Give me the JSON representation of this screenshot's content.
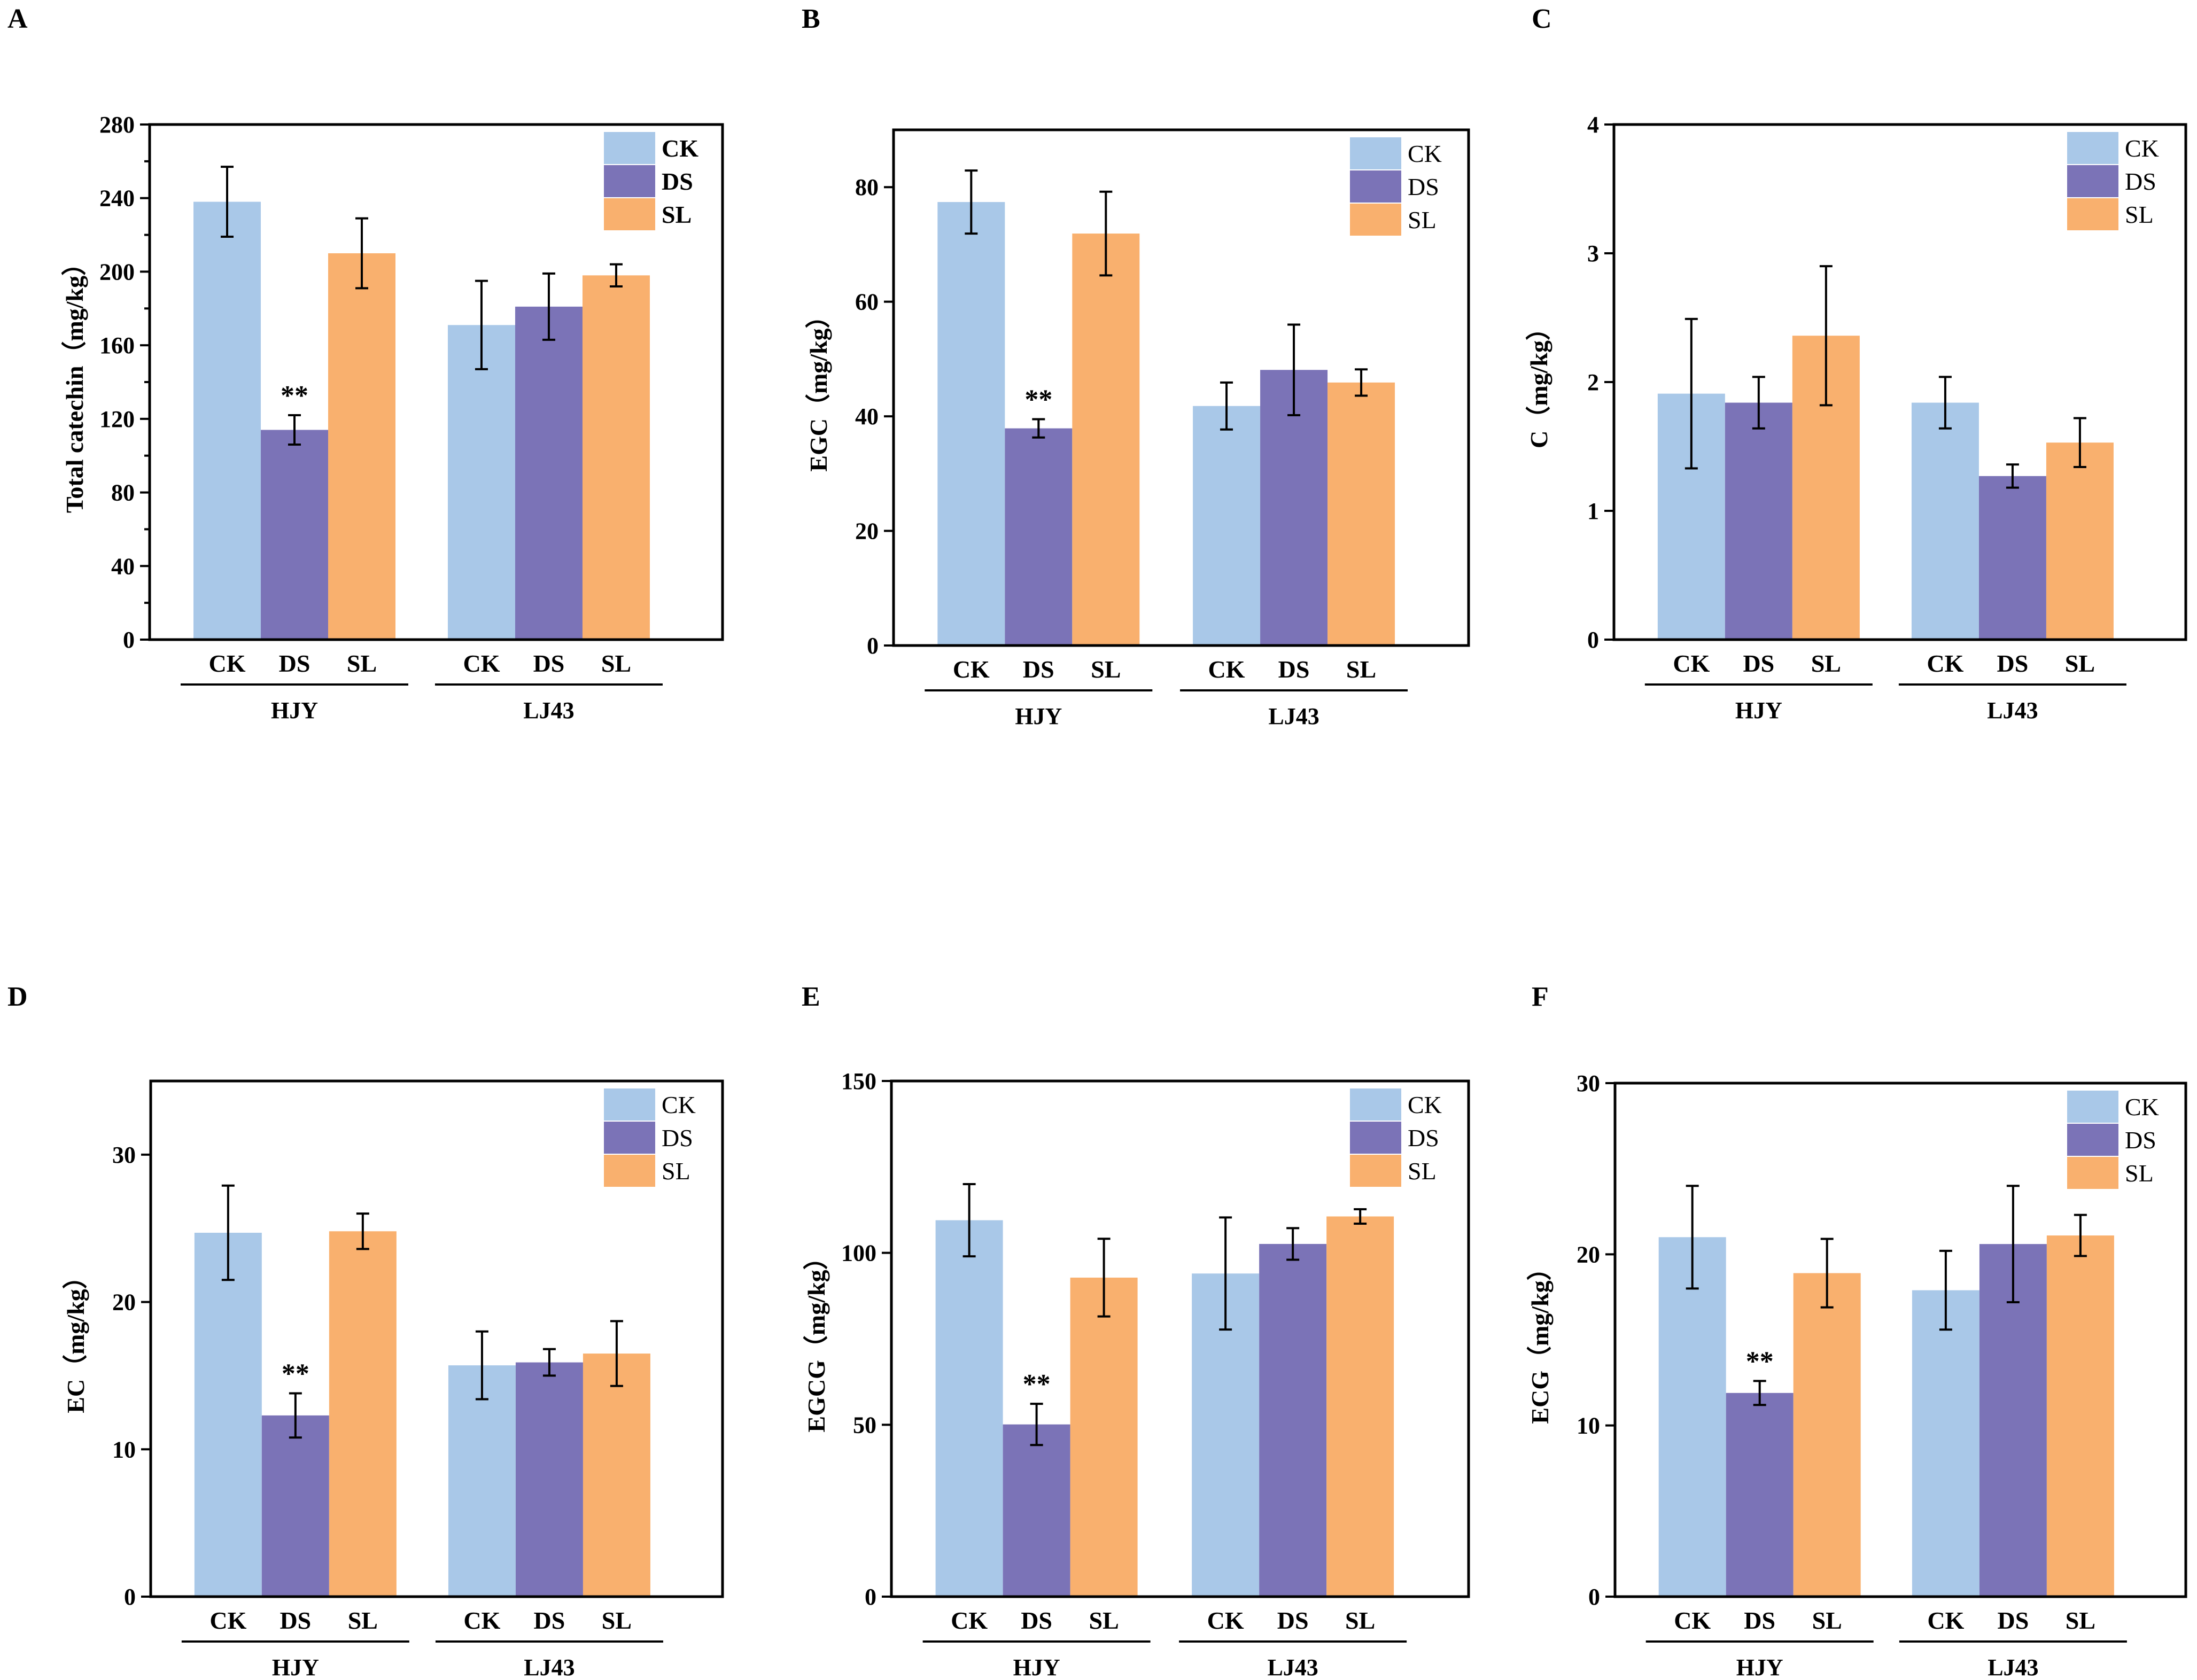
{
  "colors": {
    "CK": "#a9c8e8",
    "DS": "#7b73b7",
    "SL": "#f9b06e"
  },
  "chart_data": [
    {
      "type": "bar",
      "panel": "A",
      "ylabel": "Total catechin（mg/kg）",
      "ylim": [
        0,
        280
      ],
      "yticks": [
        0,
        40,
        80,
        120,
        160,
        200,
        240,
        280
      ],
      "minor_ticks": true,
      "groups": [
        "HJY",
        "LJ43"
      ],
      "categories": [
        "CK",
        "DS",
        "SL"
      ],
      "legend": [
        "CK",
        "DS",
        "SL"
      ],
      "legend_bold": true,
      "series": [
        {
          "group": "HJY",
          "values": [
            238,
            114,
            210
          ],
          "errors": [
            19,
            8,
            19
          ]
        },
        {
          "group": "LJ43",
          "values": [
            171,
            181,
            198
          ],
          "errors": [
            24,
            18,
            6
          ]
        }
      ],
      "annotations": [
        {
          "group": "HJY",
          "category": "DS",
          "text": "**"
        }
      ]
    },
    {
      "type": "bar",
      "panel": "B",
      "ylabel": "EGC（mg/kg）",
      "ylim": [
        0,
        90
      ],
      "yticks": [
        0,
        20,
        40,
        60,
        80
      ],
      "minor_ticks": false,
      "groups": [
        "HJY",
        "LJ43"
      ],
      "categories": [
        "CK",
        "DS",
        "SL"
      ],
      "legend": [
        "CK",
        "DS",
        "SL"
      ],
      "legend_bold": false,
      "series": [
        {
          "group": "HJY",
          "values": [
            77.4,
            37.9,
            71.9
          ],
          "errors": [
            5.5,
            1.6,
            7.3
          ]
        },
        {
          "group": "LJ43",
          "values": [
            41.8,
            48.1,
            45.9
          ],
          "errors": [
            4.1,
            7.9,
            2.3
          ]
        }
      ],
      "annotations": [
        {
          "group": "HJY",
          "category": "DS",
          "text": "**"
        }
      ]
    },
    {
      "type": "bar",
      "panel": "C",
      "ylabel": "C（mg/kg）",
      "ylim": [
        0,
        4
      ],
      "yticks": [
        0,
        1,
        2,
        3,
        4
      ],
      "minor_ticks": false,
      "groups": [
        "HJY",
        "LJ43"
      ],
      "categories": [
        "CK",
        "DS",
        "SL"
      ],
      "legend": [
        "CK",
        "DS",
        "SL"
      ],
      "legend_bold": false,
      "series": [
        {
          "group": "HJY",
          "values": [
            1.91,
            1.84,
            2.36
          ],
          "errors": [
            0.58,
            0.2,
            0.54
          ]
        },
        {
          "group": "LJ43",
          "values": [
            1.84,
            1.27,
            1.53
          ],
          "errors": [
            0.2,
            0.09,
            0.19
          ]
        }
      ],
      "annotations": []
    },
    {
      "type": "bar",
      "panel": "D",
      "ylabel": "EC（mg/kg）",
      "ylim": [
        0,
        35
      ],
      "yticks": [
        0,
        10,
        20,
        30
      ],
      "minor_ticks": false,
      "groups": [
        "HJY",
        "LJ43"
      ],
      "categories": [
        "CK",
        "DS",
        "SL"
      ],
      "legend": [
        "CK",
        "DS",
        "SL"
      ],
      "legend_bold": false,
      "series": [
        {
          "group": "HJY",
          "values": [
            24.7,
            12.3,
            24.8
          ],
          "errors": [
            3.2,
            1.5,
            1.2
          ]
        },
        {
          "group": "LJ43",
          "values": [
            15.7,
            15.9,
            16.5
          ],
          "errors": [
            2.3,
            0.9,
            2.2
          ]
        }
      ],
      "annotations": [
        {
          "group": "HJY",
          "category": "DS",
          "text": "**"
        }
      ]
    },
    {
      "type": "bar",
      "panel": "E",
      "ylabel": "EGCG（mg/kg）",
      "ylim": [
        0,
        150
      ],
      "yticks": [
        0,
        50,
        100,
        150
      ],
      "minor_ticks": false,
      "groups": [
        "HJY",
        "LJ43"
      ],
      "categories": [
        "CK",
        "DS",
        "SL"
      ],
      "legend": [
        "CK",
        "DS",
        "SL"
      ],
      "legend_bold": false,
      "series": [
        {
          "group": "HJY",
          "values": [
            109.5,
            50.1,
            92.8
          ],
          "errors": [
            10.5,
            6.0,
            11.3
          ]
        },
        {
          "group": "LJ43",
          "values": [
            94.0,
            102.6,
            110.6
          ],
          "errors": [
            16.3,
            4.6,
            2.1
          ]
        }
      ],
      "annotations": [
        {
          "group": "HJY",
          "category": "DS",
          "text": "**"
        }
      ]
    },
    {
      "type": "bar",
      "panel": "F",
      "ylabel": "ECG（mg/kg）",
      "ylim": [
        0,
        30
      ],
      "yticks": [
        0,
        10,
        20,
        30
      ],
      "minor_ticks": false,
      "groups": [
        "HJY",
        "LJ43"
      ],
      "categories": [
        "CK",
        "DS",
        "SL"
      ],
      "legend": [
        "CK",
        "DS",
        "SL"
      ],
      "legend_bold": false,
      "series": [
        {
          "group": "HJY",
          "values": [
            21.0,
            11.9,
            18.9
          ],
          "errors": [
            3.0,
            0.7,
            2.0
          ]
        },
        {
          "group": "LJ43",
          "values": [
            17.9,
            20.6,
            21.1
          ],
          "errors": [
            2.3,
            3.4,
            1.2
          ]
        }
      ],
      "annotations": [
        {
          "group": "HJY",
          "category": "DS",
          "text": "**"
        }
      ]
    }
  ]
}
